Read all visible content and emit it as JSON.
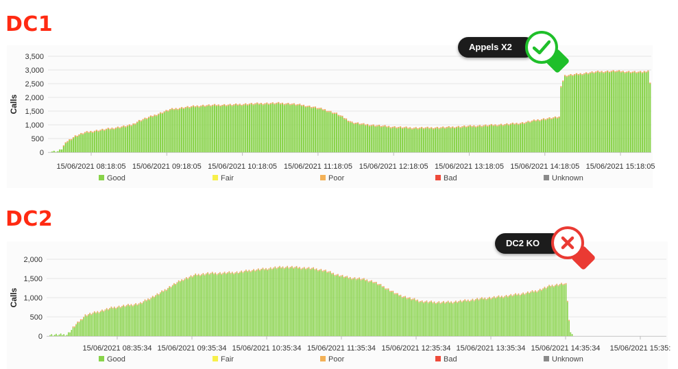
{
  "charts": [
    {
      "id": "dc1",
      "heading": "DC1",
      "badge": {
        "text": "Appels X2",
        "status": "ok",
        "icon": "check-icon",
        "color": "#1fbf2a"
      },
      "chart_data": {
        "type": "bar",
        "ylabel": "Calls",
        "ylim": [
          0,
          3500
        ],
        "yticks": [
          "3,500",
          "3,000",
          "2,500",
          "2,000",
          "1,500",
          "1,000",
          "500",
          "0"
        ],
        "xticks": [
          "15/06/2021 08:18:05",
          "15/06/2021 09:18:05",
          "15/06/2021 10:18:05",
          "15/06/2021 11:18:05",
          "15/06/2021 12:18:05",
          "15/06/2021 13:18:05",
          "15/06/2021 14:18:05",
          "15/06/2021 15:18:05"
        ],
        "grid": true,
        "legend_position": "bottom",
        "series": [
          {
            "name": "Good",
            "color": "#88d34a"
          },
          {
            "name": "Fair",
            "color": "#f7f04a"
          },
          {
            "name": "Poor",
            "color": "#f3b157"
          },
          {
            "name": "Bad",
            "color": "#ee4a3a"
          },
          {
            "name": "Unknown",
            "color": "#8a8a8a"
          }
        ],
        "good_profile": [
          [
            0,
            30
          ],
          [
            4,
            40
          ],
          [
            6,
            120
          ],
          [
            9,
            380
          ],
          [
            13,
            560
          ],
          [
            18,
            690
          ],
          [
            24,
            760
          ],
          [
            30,
            820
          ],
          [
            37,
            900
          ],
          [
            42,
            960
          ],
          [
            46,
            1120
          ],
          [
            54,
            1320
          ],
          [
            62,
            1530
          ],
          [
            70,
            1610
          ],
          [
            78,
            1670
          ],
          [
            86,
            1690
          ],
          [
            94,
            1700
          ],
          [
            102,
            1730
          ],
          [
            110,
            1750
          ],
          [
            118,
            1760
          ],
          [
            124,
            1740
          ],
          [
            130,
            1690
          ],
          [
            136,
            1620
          ],
          [
            142,
            1520
          ],
          [
            148,
            1380
          ],
          [
            152,
            1220
          ],
          [
            156,
            1060
          ],
          [
            162,
            990
          ],
          [
            168,
            950
          ],
          [
            176,
            900
          ],
          [
            186,
            860
          ],
          [
            196,
            860
          ],
          [
            206,
            880
          ],
          [
            216,
            920
          ],
          [
            226,
            950
          ],
          [
            236,
            990
          ],
          [
            244,
            1040
          ],
          [
            252,
            1150
          ],
          [
            258,
            1210
          ],
          [
            263,
            1250
          ],
          [
            264,
            2400
          ],
          [
            266,
            2760
          ],
          [
            274,
            2830
          ],
          [
            282,
            2900
          ],
          [
            292,
            2930
          ],
          [
            300,
            2900
          ],
          [
            306,
            2890
          ],
          [
            309,
            2950
          ],
          [
            310,
            2480
          ]
        ],
        "bar_count": 311
      }
    },
    {
      "id": "dc2",
      "heading": "DC2",
      "badge": {
        "text": "DC2 KO",
        "status": "error",
        "icon": "cross-icon",
        "color": "#ea3a33"
      },
      "chart_data": {
        "type": "bar",
        "ylabel": "Calls",
        "ylim": [
          0,
          2000
        ],
        "yticks": [
          "2,000",
          "1,500",
          "1,000",
          "500",
          "0"
        ],
        "xticks": [
          "15/06/2021 08:35:34",
          "15/06/2021 09:35:34",
          "15/06/2021 10:35:34",
          "15/06/2021 11:35:34",
          "15/06/2021 12:35:34",
          "15/06/2021 13:35:34",
          "15/06/2021 14:35:34",
          "15/06/2021 15:35:"
        ],
        "grid": true,
        "legend_position": "bottom",
        "series": [
          {
            "name": "Good",
            "color": "#88d34a"
          },
          {
            "name": "Fair",
            "color": "#f7f04a"
          },
          {
            "name": "Poor",
            "color": "#f3b157"
          },
          {
            "name": "Bad",
            "color": "#ee4a3a"
          },
          {
            "name": "Unknown",
            "color": "#8a8a8a"
          }
        ],
        "good_profile": [
          [
            0,
            30
          ],
          [
            12,
            40
          ],
          [
            18,
            280
          ],
          [
            24,
            520
          ],
          [
            32,
            610
          ],
          [
            42,
            720
          ],
          [
            52,
            780
          ],
          [
            60,
            830
          ],
          [
            66,
            960
          ],
          [
            72,
            1080
          ],
          [
            80,
            1280
          ],
          [
            88,
            1460
          ],
          [
            96,
            1570
          ],
          [
            104,
            1610
          ],
          [
            114,
            1620
          ],
          [
            124,
            1640
          ],
          [
            132,
            1690
          ],
          [
            140,
            1720
          ],
          [
            148,
            1760
          ],
          [
            156,
            1780
          ],
          [
            164,
            1760
          ],
          [
            172,
            1740
          ],
          [
            180,
            1690
          ],
          [
            188,
            1580
          ],
          [
            196,
            1500
          ],
          [
            204,
            1470
          ],
          [
            212,
            1400
          ],
          [
            220,
            1240
          ],
          [
            228,
            1060
          ],
          [
            236,
            960
          ],
          [
            244,
            880
          ],
          [
            252,
            860
          ],
          [
            262,
            860
          ],
          [
            272,
            900
          ],
          [
            282,
            950
          ],
          [
            292,
            990
          ],
          [
            302,
            1040
          ],
          [
            312,
            1100
          ],
          [
            320,
            1170
          ],
          [
            328,
            1290
          ],
          [
            336,
            1340
          ],
          [
            338,
            1320
          ],
          [
            339,
            900
          ],
          [
            340,
            380
          ],
          [
            341,
            130
          ],
          [
            342,
            60
          ]
        ],
        "bar_count": 343
      }
    }
  ]
}
